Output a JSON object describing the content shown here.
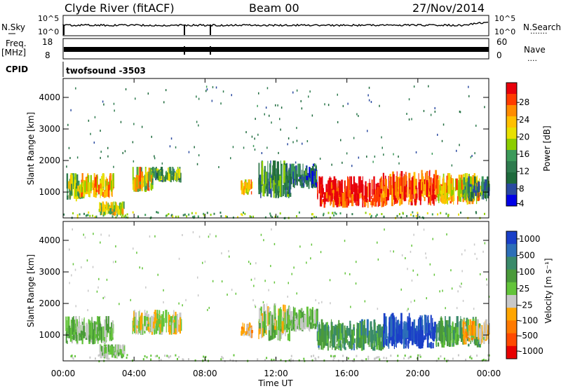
{
  "header": {
    "station": "Clyde River (fitACF)",
    "beam": "Beam 00",
    "date": "27/Nov/2014"
  },
  "noise_panel": {
    "left_label": "N.Sky",
    "left_ticks": [
      "10^5",
      "10^0"
    ],
    "right_ticks": [
      "10^5",
      "10^0"
    ],
    "right_label": "N.Search",
    "right_dots": "·······"
  },
  "freq_panel": {
    "left_label_top": "Freq.",
    "left_label_bottom": "[MHz]",
    "left_ticks": [
      "18",
      "8"
    ],
    "right_ticks": [
      "60",
      "0"
    ],
    "right_label": "Nave",
    "right_dots": "····"
  },
  "cpid": {
    "label": "CPID",
    "text": "twofsound -3503"
  },
  "axes": {
    "ylabel": "Slant Range [km]",
    "xlabel": "Time UT",
    "x_ticks": [
      "00:00",
      "04:00",
      "08:00",
      "12:00",
      "16:00",
      "20:00",
      "00:00"
    ],
    "y_ticks": [
      "1000",
      "2000",
      "3000",
      "4000"
    ]
  },
  "power_colorbar": {
    "label": "Power [dB]",
    "ticks": [
      "28",
      "24",
      "20",
      "16",
      "12",
      "8",
      "4"
    ],
    "colors": [
      "#e8000b",
      "#ff3c00",
      "#ff8c00",
      "#ffc000",
      "#e8e000",
      "#8ccd00",
      "#3c9a5a",
      "#2e7b4e",
      "#1e6a3c",
      "#2a4aa0",
      "#0000e6"
    ]
  },
  "velocity_colorbar": {
    "label": "Velocity [m s⁻¹]",
    "ticks": [
      "1000",
      "500",
      "100",
      "25",
      "-25",
      "-100",
      "-500",
      "-1000"
    ],
    "colors": [
      "#1a3fc8",
      "#2d6fb8",
      "#3a8a6a",
      "#4a9a3a",
      "#63c43a",
      "#c8c8c8",
      "#ffa500",
      "#ff7a00",
      "#ff4a00",
      "#e80000"
    ]
  },
  "chart_data": [
    {
      "type": "heatmap",
      "panel": "power",
      "title": "",
      "xlabel": "Time UT",
      "ylabel": "Slant Range [km]",
      "xlim": [
        0,
        24
      ],
      "ylim": [
        180,
        4600
      ],
      "color_scale_db": [
        0,
        32
      ],
      "regions": [
        {
          "t": [
            0.1,
            1.1
          ],
          "r": [
            700,
            1600
          ],
          "value": 16
        },
        {
          "t": [
            1.0,
            2.8
          ],
          "r": [
            800,
            1600
          ],
          "value": 22
        },
        {
          "t": [
            2.0,
            3.4
          ],
          "r": [
            250,
            700
          ],
          "value": 18
        },
        {
          "t": [
            3.9,
            5.0
          ],
          "r": [
            1000,
            1800
          ],
          "value": 20
        },
        {
          "t": [
            5.0,
            6.6
          ],
          "r": [
            1300,
            1800
          ],
          "value": 12
        },
        {
          "t": [
            10.0,
            10.6
          ],
          "r": [
            900,
            1400
          ],
          "value": 22
        },
        {
          "t": [
            11.0,
            12.8
          ],
          "r": [
            800,
            2000
          ],
          "value": 10
        },
        {
          "t": [
            12.5,
            14.3
          ],
          "r": [
            1100,
            1900
          ],
          "value": 8
        },
        {
          "t": [
            14.3,
            18.2
          ],
          "r": [
            500,
            1500
          ],
          "value": 30
        },
        {
          "t": [
            18.0,
            21.0
          ],
          "r": [
            550,
            1700
          ],
          "value": 28
        },
        {
          "t": [
            21.0,
            23.5
          ],
          "r": [
            600,
            1600
          ],
          "value": 22
        },
        {
          "t": [
            22.5,
            24.0
          ],
          "r": [
            700,
            1500
          ],
          "value": 10
        }
      ]
    },
    {
      "type": "heatmap",
      "panel": "velocity",
      "title": "",
      "xlabel": "Time UT",
      "ylabel": "Slant Range [km]",
      "xlim": [
        0,
        24
      ],
      "ylim": [
        180,
        4600
      ],
      "color_scale_ms": [
        -1000,
        1000
      ],
      "regions": [
        {
          "t": [
            0.1,
            2.8
          ],
          "r": [
            700,
            1600
          ],
          "value": 100
        },
        {
          "t": [
            2.0,
            3.4
          ],
          "r": [
            250,
            700
          ],
          "value": 60
        },
        {
          "t": [
            3.9,
            6.6
          ],
          "r": [
            1000,
            1800
          ],
          "value": -100
        },
        {
          "t": [
            10.0,
            10.6
          ],
          "r": [
            900,
            1400
          ],
          "value": -300
        },
        {
          "t": [
            11.0,
            12.8
          ],
          "r": [
            800,
            2000
          ],
          "value": 0
        },
        {
          "t": [
            12.5,
            14.3
          ],
          "r": [
            1100,
            1900
          ],
          "value": 50
        },
        {
          "t": [
            14.3,
            18.2
          ],
          "r": [
            500,
            1500
          ],
          "value": 400
        },
        {
          "t": [
            18.0,
            21.0
          ],
          "r": [
            550,
            1700
          ],
          "value": 900
        },
        {
          "t": [
            21.0,
            23.5
          ],
          "r": [
            600,
            1600
          ],
          "value": 300
        },
        {
          "t": [
            22.5,
            24.0
          ],
          "r": [
            700,
            1500
          ],
          "value": -200
        }
      ]
    }
  ]
}
